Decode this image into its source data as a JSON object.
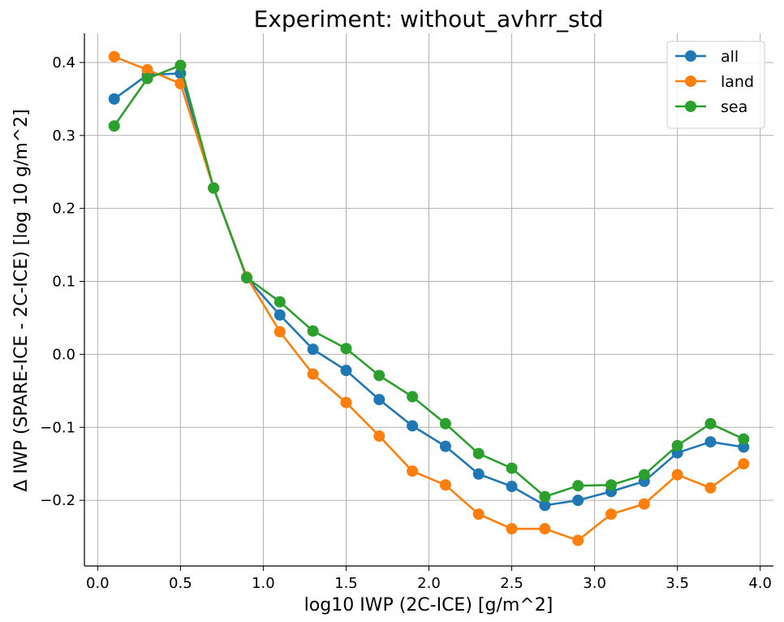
{
  "chart_data": {
    "type": "line",
    "title": "Experiment: without_avhrr_std",
    "xlabel": "log10 IWP (2C-ICE) [g/m^2]",
    "ylabel": "Δ IWP (SPARE-ICE - 2C-ICE) [log 10 g/m^2]",
    "xlim": [
      -0.08,
      4.08
    ],
    "ylim": [
      -0.29,
      0.44
    ],
    "xticks": [
      0.0,
      0.5,
      1.0,
      1.5,
      2.0,
      2.5,
      3.0,
      3.5,
      4.0
    ],
    "xtick_labels": [
      "0.0",
      "0.5",
      "1.0",
      "1.5",
      "2.0",
      "2.5",
      "3.0",
      "3.5",
      "4.0"
    ],
    "yticks": [
      -0.2,
      -0.1,
      0.0,
      0.1,
      0.2,
      0.3,
      0.4
    ],
    "ytick_labels": [
      "−0.2",
      "−0.1",
      "0.0",
      "0.1",
      "0.2",
      "0.3",
      "0.4"
    ],
    "grid": true,
    "legend": "top-right",
    "x": [
      0.1,
      0.3,
      0.5,
      0.7,
      0.9,
      1.1,
      1.3,
      1.5,
      1.7,
      1.9,
      2.1,
      2.3,
      2.5,
      2.7,
      2.9,
      3.1,
      3.3,
      3.5,
      3.7,
      3.9
    ],
    "series": [
      {
        "name": "all",
        "color": "#1f77b4",
        "values": [
          0.35,
          0.383,
          0.385,
          0.228,
          0.105,
          0.054,
          0.007,
          -0.022,
          -0.062,
          -0.098,
          -0.126,
          -0.164,
          -0.181,
          -0.207,
          -0.2,
          -0.188,
          -0.174,
          -0.135,
          -0.12,
          -0.127
        ]
      },
      {
        "name": "land",
        "color": "#ff7f0e",
        "values": [
          0.408,
          0.39,
          0.371,
          0.228,
          0.106,
          0.031,
          -0.027,
          -0.066,
          -0.112,
          -0.16,
          -0.179,
          -0.219,
          -0.239,
          -0.239,
          -0.255,
          -0.219,
          -0.205,
          -0.165,
          -0.183,
          -0.15
        ]
      },
      {
        "name": "sea",
        "color": "#2ca02c",
        "values": [
          0.313,
          0.378,
          0.396,
          0.228,
          0.105,
          0.072,
          0.032,
          0.008,
          -0.029,
          -0.058,
          -0.095,
          -0.136,
          -0.156,
          -0.195,
          -0.18,
          -0.179,
          -0.165,
          -0.125,
          -0.095,
          -0.116
        ]
      }
    ]
  }
}
